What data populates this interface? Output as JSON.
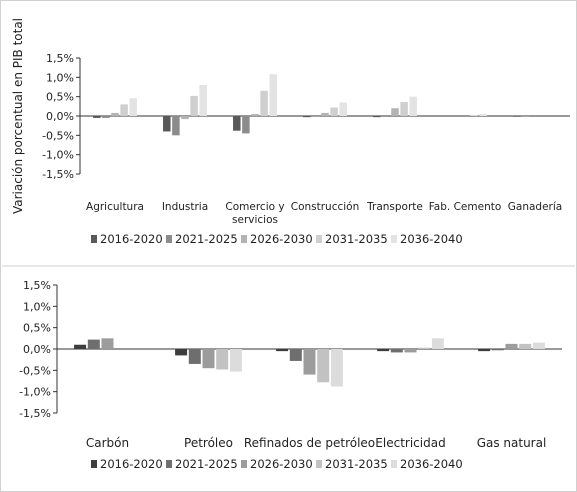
{
  "chart_data": [
    {
      "type": "bar",
      "title": "",
      "xlabel": "",
      "ylabel": "Variación porcentual en PIB total",
      "ylim": [
        -1.5,
        1.5
      ],
      "yticks": [
        "1,5%",
        "1,0%",
        "0,5%",
        "0,0%",
        "-0,5%",
        "-1,0%",
        "-1,5%"
      ],
      "grid": false,
      "legend_position": "bottom",
      "categories": [
        [
          "Agricultura"
        ],
        [
          "Industria"
        ],
        [
          "Comercio y",
          "servicios"
        ],
        [
          "Construcción"
        ],
        [
          "Transporte"
        ],
        [
          "Fab. Cemento"
        ],
        [
          "Ganadería"
        ]
      ],
      "series": [
        {
          "name": "2016-2020",
          "color": "#595959",
          "values": [
            -0.05,
            -0.4,
            -0.38,
            -0.03,
            -0.03,
            0.0,
            -0.02
          ]
        },
        {
          "name": "2021-2025",
          "color": "#8c8c8c",
          "values": [
            -0.05,
            -0.5,
            -0.45,
            -0.02,
            0.0,
            0.0,
            -0.02
          ]
        },
        {
          "name": "2026-2030",
          "color": "#b3b3b3",
          "values": [
            0.08,
            -0.08,
            0.05,
            0.08,
            0.2,
            0.0,
            -0.01
          ]
        },
        {
          "name": "2031-2035",
          "color": "#cfcfcf",
          "values": [
            0.3,
            0.52,
            0.65,
            0.22,
            0.36,
            0.02,
            0.0
          ]
        },
        {
          "name": "2036-2040",
          "color": "#e3e3e3",
          "values": [
            0.46,
            0.8,
            1.08,
            0.35,
            0.5,
            0.05,
            0.0
          ]
        }
      ]
    },
    {
      "type": "bar",
      "title": "",
      "xlabel": "",
      "ylabel": "",
      "ylim": [
        -1.5,
        1.5
      ],
      "yticks": [
        "1,5%",
        "1,0%",
        "0,5%",
        "0,0%",
        "-0,5%",
        "-1,0%",
        "-1,5%"
      ],
      "grid": false,
      "legend_position": "bottom",
      "categories": [
        [
          "Carbón"
        ],
        [
          "Petróleo"
        ],
        [
          "Refinados de petróleo"
        ],
        [
          "Electricidad"
        ],
        [
          "Gas natural"
        ]
      ],
      "series": [
        {
          "name": "2016-2020",
          "color": "#3d3d3d",
          "values": [
            0.1,
            -0.15,
            -0.05,
            -0.05,
            -0.05
          ]
        },
        {
          "name": "2021-2025",
          "color": "#6e6e6e",
          "values": [
            0.22,
            -0.35,
            -0.28,
            -0.08,
            -0.03
          ]
        },
        {
          "name": "2026-2030",
          "color": "#9c9c9c",
          "values": [
            0.25,
            -0.45,
            -0.6,
            -0.08,
            0.12
          ]
        },
        {
          "name": "2031-2035",
          "color": "#c2c2c2",
          "values": [
            0.0,
            -0.48,
            -0.78,
            0.03,
            0.12
          ]
        },
        {
          "name": "2036-2040",
          "color": "#dcdcdc",
          "values": [
            0.0,
            -0.53,
            -0.88,
            0.25,
            0.15
          ]
        }
      ]
    }
  ]
}
